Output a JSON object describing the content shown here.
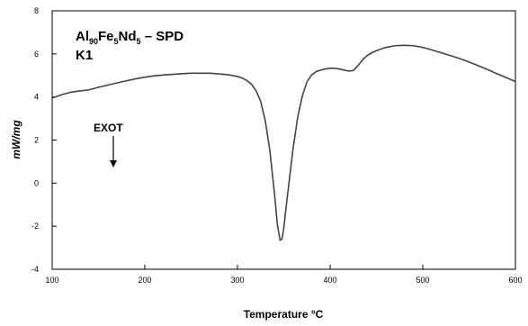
{
  "chart_data": {
    "type": "line",
    "title": "",
    "xlabel": "Temperature °C",
    "ylabel": "mW/mg",
    "xlim": [
      100,
      600
    ],
    "ylim": [
      -4,
      8
    ],
    "x_ticks": [
      "100",
      "200",
      "300",
      "400",
      "500",
      "600"
    ],
    "y_ticks": [
      "-4",
      "-2",
      "0",
      "2",
      "4",
      "6",
      "8"
    ],
    "grid": false,
    "annotation": {
      "line1": {
        "base": "Al",
        "s1": "90",
        "b2": "Fe",
        "s2": "5",
        "b3": "Nd",
        "s3": "5",
        "tail": " – SPD"
      },
      "line2": "K1"
    },
    "direction_label": "EXOT",
    "line_color": "#444444",
    "series": [
      {
        "x": [
          100,
          110,
          120,
          130,
          140,
          150,
          160,
          170,
          180,
          190,
          200,
          210,
          220,
          230,
          240,
          250,
          260,
          270,
          280,
          290,
          300,
          305,
          310,
          315,
          320,
          325,
          330,
          335,
          340,
          343,
          346,
          348,
          350,
          352,
          355,
          360,
          365,
          370,
          375,
          380,
          385,
          390,
          395,
          400,
          405,
          410,
          415,
          420,
          425,
          430,
          435,
          440,
          445,
          450,
          460,
          470,
          480,
          490,
          500,
          510,
          520,
          530,
          540,
          550,
          560,
          570,
          580,
          590,
          600
        ],
        "y": [
          3.95,
          4.1,
          4.22,
          4.28,
          4.33,
          4.45,
          4.55,
          4.65,
          4.75,
          4.84,
          4.92,
          4.98,
          5.02,
          5.05,
          5.08,
          5.1,
          5.1,
          5.1,
          5.07,
          5.03,
          4.95,
          4.88,
          4.77,
          4.6,
          4.3,
          3.8,
          2.9,
          1.5,
          -0.5,
          -1.9,
          -2.65,
          -2.6,
          -2.1,
          -1.3,
          -0.2,
          1.6,
          3.05,
          4.05,
          4.7,
          5.02,
          5.18,
          5.25,
          5.3,
          5.33,
          5.33,
          5.3,
          5.25,
          5.2,
          5.23,
          5.45,
          5.72,
          5.92,
          6.05,
          6.15,
          6.3,
          6.38,
          6.4,
          6.38,
          6.3,
          6.18,
          6.05,
          5.92,
          5.78,
          5.62,
          5.45,
          5.27,
          5.08,
          4.9,
          4.72
        ]
      }
    ]
  }
}
